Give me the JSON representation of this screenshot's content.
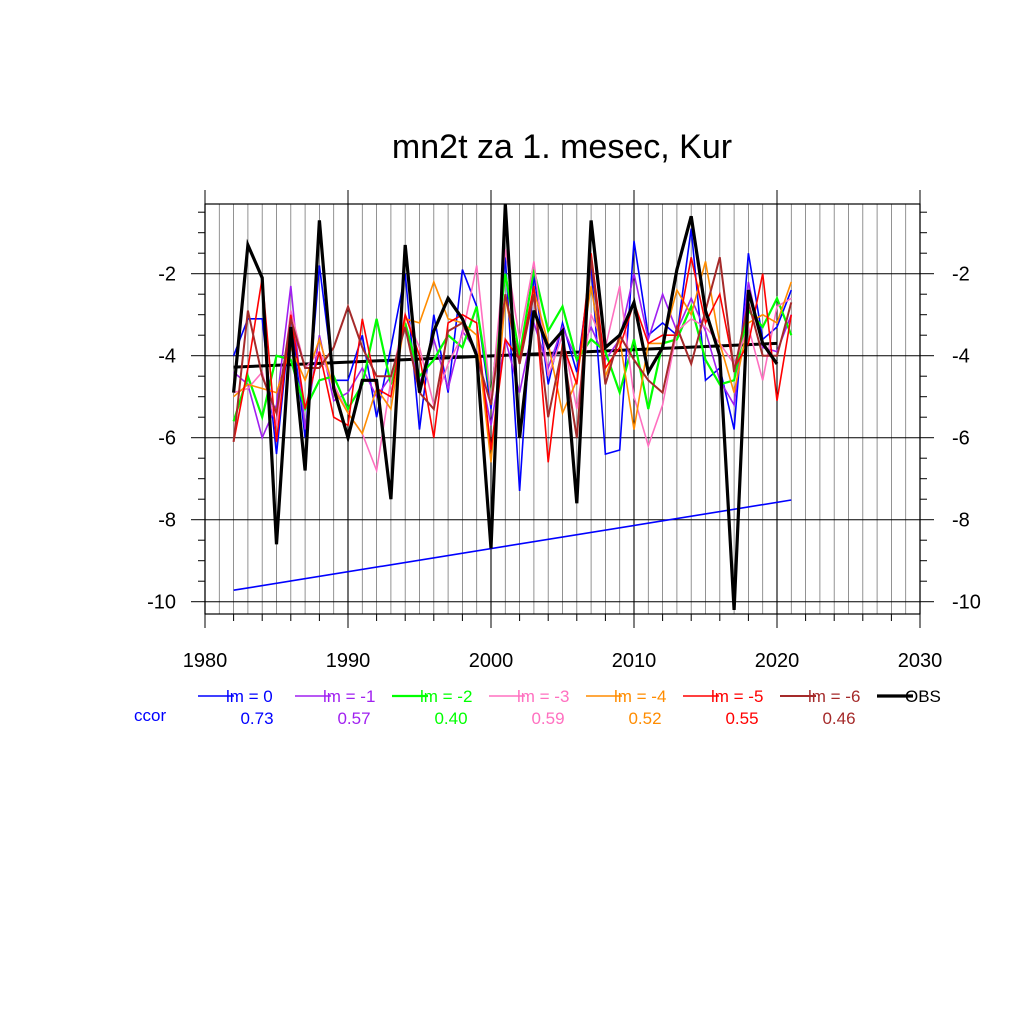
{
  "chart_data": {
    "type": "line",
    "title": "mn2t za 1. mesec, Kur",
    "xlabel": "",
    "ylabel": "",
    "xlim": [
      1980,
      2030
    ],
    "ylim": [
      -10.3,
      -0.3
    ],
    "xticks": [
      1980,
      1990,
      2000,
      2010,
      2020,
      2030
    ],
    "yticks": [
      -10,
      -8,
      -6,
      -4,
      -2
    ],
    "grid": true,
    "legend_position": "bottom",
    "ccor_label": "ccor",
    "series": [
      {
        "name": "lm = 0",
        "color": "#0000ff",
        "width": 1.6,
        "ccor": "0.73",
        "x": [
          1982,
          1983,
          1984,
          1985,
          1986,
          1987,
          1988,
          1989,
          1990,
          1991,
          1992,
          1993,
          1994,
          1995,
          1996,
          1997,
          1998,
          1999,
          2000,
          2001,
          2002,
          2003,
          2004,
          2005,
          2006,
          2007,
          2008,
          2009,
          2010,
          2011,
          2012,
          2013,
          2014,
          2015,
          2016,
          2017,
          2018,
          2019,
          2020,
          2021
        ],
        "y": [
          -4.0,
          -3.1,
          -3.1,
          -6.4,
          -3.0,
          -6.0,
          -1.8,
          -4.6,
          -4.6,
          -3.5,
          -5.5,
          -3.8,
          -2.0,
          -5.8,
          -3.0,
          -4.9,
          -1.9,
          -2.8,
          -5.3,
          -1.6,
          -7.3,
          -2.0,
          -4.7,
          -3.2,
          -4.4,
          -1.8,
          -6.4,
          -6.3,
          -1.2,
          -3.5,
          -3.2,
          -3.5,
          -0.9,
          -4.6,
          -4.3,
          -5.8,
          -1.5,
          -3.6,
          -3.3,
          -2.4
        ]
      },
      {
        "name": "lm = -1",
        "color": "#a020f0",
        "width": 1.6,
        "ccor": "0.57",
        "x": [
          1982,
          1983,
          1984,
          1985,
          1986,
          1987,
          1988,
          1989,
          1990,
          1991,
          1992,
          1993,
          1994,
          1995,
          1996,
          1997,
          1998,
          1999,
          2000,
          2001,
          2002,
          2003,
          2004,
          2005,
          2006,
          2007,
          2008,
          2009,
          2010,
          2011,
          2012,
          2013,
          2014,
          2015,
          2016,
          2017,
          2018,
          2019,
          2020,
          2021
        ],
        "y": [
          -4.4,
          -4.7,
          -6.0,
          -5.2,
          -2.3,
          -5.8,
          -3.5,
          -5.1,
          -4.9,
          -4.3,
          -5.0,
          -4.5,
          -3.3,
          -4.7,
          -3.6,
          -4.8,
          -3.4,
          -3.9,
          -5.7,
          -3.6,
          -4.9,
          -3.2,
          -4.3,
          -3.3,
          -4.1,
          -3.3,
          -4.1,
          -3.6,
          -2.0,
          -3.6,
          -2.5,
          -3.4,
          -2.6,
          -3.4,
          -4.6,
          -5.2,
          -2.2,
          -3.8,
          -3.9,
          -3.0
        ]
      },
      {
        "name": "lm = -2",
        "color": "#00ff00",
        "width": 2.2,
        "ccor": "0.40",
        "x": [
          1982,
          1983,
          1984,
          1985,
          1986,
          1987,
          1988,
          1989,
          1990,
          1991,
          1992,
          1993,
          1994,
          1995,
          1996,
          1997,
          1998,
          1999,
          2000,
          2001,
          2002,
          2003,
          2004,
          2005,
          2006,
          2007,
          2008,
          2009,
          2010,
          2011,
          2012,
          2013,
          2014,
          2015,
          2016,
          2017,
          2018,
          2019,
          2020,
          2021
        ],
        "y": [
          -5.6,
          -4.5,
          -5.5,
          -4.0,
          -4.1,
          -5.3,
          -4.6,
          -4.5,
          -5.3,
          -4.7,
          -3.1,
          -4.7,
          -3.2,
          -4.5,
          -4.1,
          -3.5,
          -3.8,
          -2.8,
          -5.0,
          -2.0,
          -4.0,
          -1.9,
          -3.4,
          -2.8,
          -4.1,
          -3.6,
          -3.9,
          -4.9,
          -3.6,
          -5.3,
          -3.7,
          -3.6,
          -2.8,
          -4.1,
          -4.7,
          -4.6,
          -2.9,
          -3.3,
          -2.6,
          -3.5
        ]
      },
      {
        "name": "lm = -3",
        "color": "#ff70c0",
        "width": 1.6,
        "ccor": "0.59",
        "x": [
          1982,
          1983,
          1984,
          1985,
          1986,
          1987,
          1988,
          1989,
          1990,
          1991,
          1992,
          1993,
          1994,
          1995,
          1996,
          1997,
          1998,
          1999,
          2000,
          2001,
          2002,
          2003,
          2004,
          2005,
          2006,
          2007,
          2008,
          2009,
          2010,
          2011,
          2012,
          2013,
          2014,
          2015,
          2016,
          2017,
          2018,
          2019,
          2020,
          2021
        ],
        "y": [
          -4.9,
          -4.8,
          -4.4,
          -5.7,
          -2.9,
          -4.3,
          -3.9,
          -4.7,
          -5.4,
          -5.9,
          -6.8,
          -4.6,
          -3.0,
          -3.8,
          -5.2,
          -4.2,
          -3.5,
          -1.8,
          -5.1,
          -1.4,
          -3.6,
          -1.7,
          -4.5,
          -3.5,
          -5.3,
          -3.0,
          -3.8,
          -2.3,
          -5.0,
          -6.2,
          -5.2,
          -3.4,
          -3.1,
          -3.3,
          -3.7,
          -4.2,
          -3.3,
          -4.6,
          -2.8,
          -2.6
        ]
      },
      {
        "name": "lm = -4",
        "color": "#ff8c00",
        "width": 1.6,
        "ccor": "0.52",
        "x": [
          1982,
          1983,
          1984,
          1985,
          1986,
          1987,
          1988,
          1989,
          1990,
          1991,
          1992,
          1993,
          1994,
          1995,
          1996,
          1997,
          1998,
          1999,
          2000,
          2001,
          2002,
          2003,
          2004,
          2005,
          2006,
          2007,
          2008,
          2009,
          2010,
          2011,
          2012,
          2013,
          2014,
          2015,
          2016,
          2017,
          2018,
          2019,
          2020,
          2021
        ],
        "y": [
          -5.0,
          -4.7,
          -4.8,
          -4.9,
          -3.8,
          -4.6,
          -3.6,
          -4.8,
          -5.4,
          -5.9,
          -4.8,
          -5.3,
          -3.1,
          -3.2,
          -2.2,
          -3.1,
          -3.2,
          -3.5,
          -6.6,
          -2.6,
          -4.2,
          -2.4,
          -3.7,
          -5.4,
          -4.6,
          -2.3,
          -4.5,
          -3.6,
          -5.8,
          -3.7,
          -3.7,
          -2.4,
          -3.0,
          -1.7,
          -3.7,
          -4.9,
          -3.2,
          -3.0,
          -3.2,
          -2.2
        ]
      },
      {
        "name": "lm = -5",
        "color": "#ff0000",
        "width": 1.6,
        "ccor": "0.55",
        "x": [
          1982,
          1983,
          1984,
          1985,
          1986,
          1987,
          1988,
          1989,
          1990,
          1991,
          1992,
          1993,
          1994,
          1995,
          1996,
          1997,
          1998,
          1999,
          2000,
          2001,
          2002,
          2003,
          2004,
          2005,
          2006,
          2007,
          2008,
          2009,
          2010,
          2011,
          2012,
          2013,
          2014,
          2015,
          2016,
          2017,
          2018,
          2019,
          2020,
          2021
        ],
        "y": [
          -6.1,
          -4.3,
          -2.1,
          -6.1,
          -3.0,
          -5.3,
          -3.9,
          -5.5,
          -5.7,
          -3.1,
          -4.8,
          -5.0,
          -3.0,
          -4.0,
          -6.0,
          -3.2,
          -3.0,
          -3.2,
          -6.3,
          -3.6,
          -4.1,
          -2.3,
          -6.6,
          -3.7,
          -4.7,
          -1.5,
          -4.3,
          -3.8,
          -2.7,
          -3.7,
          -3.5,
          -3.5,
          -1.6,
          -3.2,
          -2.5,
          -4.3,
          -3.7,
          -2.0,
          -5.1,
          -3.0
        ]
      },
      {
        "name": "lm = -6",
        "color": "#a52a2a",
        "width": 2.0,
        "ccor": "0.46",
        "x": [
          1982,
          1983,
          1984,
          1985,
          1986,
          1987,
          1988,
          1989,
          1990,
          1991,
          1992,
          1993,
          1994,
          1995,
          1996,
          1997,
          1998,
          1999,
          2000,
          2001,
          2002,
          2003,
          2004,
          2005,
          2006,
          2007,
          2008,
          2009,
          2010,
          2011,
          2012,
          2013,
          2014,
          2015,
          2016,
          2017,
          2018,
          2019,
          2020,
          2021
        ],
        "y": [
          -6.1,
          -2.9,
          -4.5,
          -5.4,
          -3.1,
          -4.3,
          -4.3,
          -3.8,
          -2.8,
          -3.8,
          -4.5,
          -4.5,
          -3.3,
          -4.9,
          -5.3,
          -3.4,
          -3.2,
          -4.0,
          -5.2,
          -2.5,
          -4.2,
          -2.5,
          -5.5,
          -3.8,
          -6.0,
          -1.6,
          -4.7,
          -3.5,
          -4.1,
          -4.6,
          -4.9,
          -3.3,
          -4.2,
          -2.9,
          -1.6,
          -4.4,
          -2.7,
          -4.0,
          -4.0,
          -2.7
        ]
      },
      {
        "name": "OBS",
        "color": "#000000",
        "width": 3.2,
        "ccor": "",
        "x": [
          1982,
          1983,
          1984,
          1985,
          1986,
          1987,
          1988,
          1989,
          1990,
          1991,
          1992,
          1993,
          1994,
          1995,
          1996,
          1997,
          1998,
          1999,
          2000,
          2001,
          2002,
          2003,
          2004,
          2005,
          2006,
          2007,
          2008,
          2009,
          2010,
          2011,
          2012,
          2013,
          2014,
          2015,
          2016,
          2017,
          2018,
          2019,
          2020
        ],
        "y": [
          -4.9,
          -1.3,
          -2.1,
          -8.6,
          -3.3,
          -6.8,
          -0.7,
          -4.8,
          -6.0,
          -4.6,
          -4.6,
          -7.5,
          -1.3,
          -4.9,
          -3.4,
          -2.6,
          -3.1,
          -4.0,
          -8.7,
          -0.3,
          -6.0,
          -2.9,
          -3.8,
          -3.4,
          -7.6,
          -0.7,
          -3.8,
          -3.5,
          -2.7,
          -4.4,
          -3.8,
          -1.9,
          -0.6,
          -2.9,
          -4.0,
          -10.2,
          -2.4,
          -3.7,
          -4.2
        ]
      }
    ],
    "trend_lines": [
      {
        "series": "lm = 0",
        "color": "#0000ff",
        "width": 1.6,
        "x": [
          1982,
          2021
        ],
        "y": [
          -9.72,
          -7.52
        ]
      },
      {
        "series": "OBS",
        "color": "#000000",
        "width": 3.0,
        "x": [
          1982,
          2020
        ],
        "y": [
          -4.28,
          -3.7
        ]
      }
    ]
  }
}
